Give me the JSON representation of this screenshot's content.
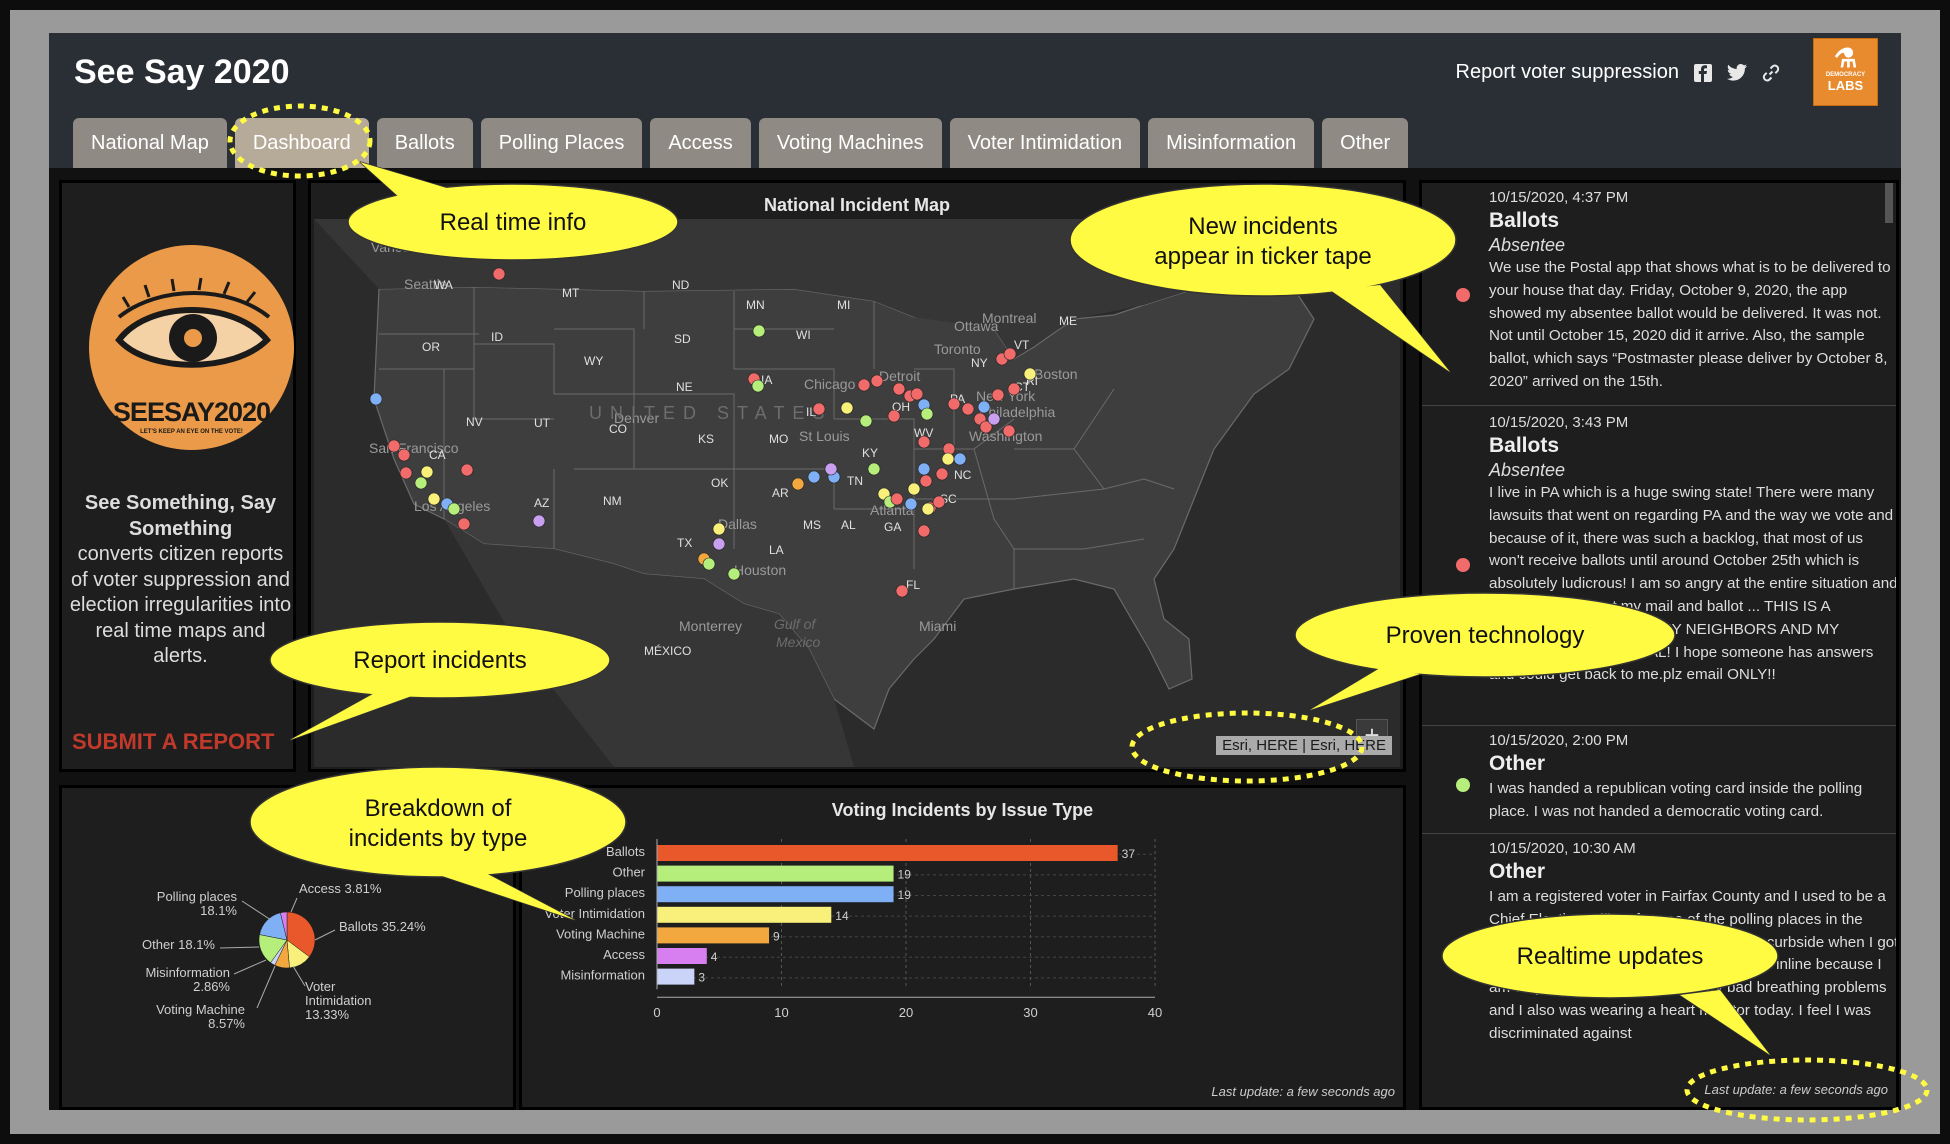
{
  "app": {
    "title": "See Say 2020"
  },
  "header": {
    "report_link": "Report voter suppression",
    "logo_text": "DEMOCRACY",
    "logo_labs": "LABS"
  },
  "tabs": [
    {
      "label": "National Map"
    },
    {
      "label": "Dashboard"
    },
    {
      "label": "Ballots"
    },
    {
      "label": "Polling Places"
    },
    {
      "label": "Access"
    },
    {
      "label": "Voting Machines"
    },
    {
      "label": "Voter Intimidation"
    },
    {
      "label": "Misinformation"
    },
    {
      "label": "Other"
    }
  ],
  "left": {
    "logo_text": "SEESAY2020",
    "logo_sub": "LET'S KEEP AN EYE ON THE VOTE!",
    "about_bold": "See Something, Say Something",
    "about_rest": "converts citizen reports of voter suppression and election irregularities into real time maps and alerts.",
    "submit_label": "SUBMIT A REPORT"
  },
  "map": {
    "title": "National Incident Map",
    "attribution": "Esri, HERE | Esri, HERE",
    "zoom_in": "+",
    "country_label": "UNITED STATES",
    "gulf_label": "Gulf of\nMexico",
    "labels": [
      {
        "t": "Vancouver"
      },
      {
        "t": "Seattle"
      },
      {
        "t": "WA"
      },
      {
        "t": "MT"
      },
      {
        "t": "ND"
      },
      {
        "t": "MN"
      },
      {
        "t": "OR"
      },
      {
        "t": "ID"
      },
      {
        "t": "WY"
      },
      {
        "t": "SD"
      },
      {
        "t": "WI"
      },
      {
        "t": "MI"
      },
      {
        "t": "Ottawa"
      },
      {
        "t": "Montreal"
      },
      {
        "t": "ME"
      },
      {
        "t": "Toronto"
      },
      {
        "t": "NY"
      },
      {
        "t": "VT"
      },
      {
        "t": "Boston"
      },
      {
        "t": "CT"
      },
      {
        "t": "RI"
      },
      {
        "t": "NV"
      },
      {
        "t": "UT"
      },
      {
        "t": "NE"
      },
      {
        "t": "IA"
      },
      {
        "t": "Chicago"
      },
      {
        "t": "Detroit"
      },
      {
        "t": "OH"
      },
      {
        "t": "PA"
      },
      {
        "t": "New York"
      },
      {
        "t": "Philadelphia"
      },
      {
        "t": "Denver"
      },
      {
        "t": "CO"
      },
      {
        "t": "KS"
      },
      {
        "t": "MO"
      },
      {
        "t": "IL"
      },
      {
        "t": "St Louis"
      },
      {
        "t": "KY"
      },
      {
        "t": "WV"
      },
      {
        "t": "Washington"
      },
      {
        "t": "San Francisco"
      },
      {
        "t": "CA"
      },
      {
        "t": "Los Angeles"
      },
      {
        "t": "AZ"
      },
      {
        "t": "NM"
      },
      {
        "t": "OK"
      },
      {
        "t": "AR"
      },
      {
        "t": "TN"
      },
      {
        "t": "Atlanta"
      },
      {
        "t": "NC"
      },
      {
        "t": "SC"
      },
      {
        "t": "MS"
      },
      {
        "t": "AL"
      },
      {
        "t": "GA"
      },
      {
        "t": "TX"
      },
      {
        "t": "Dallas"
      },
      {
        "t": "LA"
      },
      {
        "t": "Houston"
      },
      {
        "t": "FL"
      },
      {
        "t": "Monterrey"
      },
      {
        "t": "Miami"
      },
      {
        "t": "MÉXICO"
      }
    ]
  },
  "pie": {
    "labels": [
      {
        "t1": "Access 3.81%",
        "t2": ""
      },
      {
        "t1": "Ballots 35.24%",
        "t2": ""
      },
      {
        "t1": "Voter",
        "t2": "Intimidation",
        "t3": "13.33%"
      },
      {
        "t1": "Voting Machine",
        "t2": "8.57%"
      },
      {
        "t1": "Misinformation",
        "t2": "2.86%"
      },
      {
        "t1": "Other 18.1%",
        "t2": ""
      },
      {
        "t1": "Polling places",
        "t2": "18.1%"
      }
    ]
  },
  "chart_data": {
    "type": "bar",
    "title": "Voting Incidents by Issue Type",
    "categories": [
      "Ballots",
      "Other",
      "Polling places",
      "Voter Intimidation",
      "Voting Machine",
      "Access",
      "Misinformation"
    ],
    "values": [
      37,
      19,
      19,
      14,
      9,
      4,
      3
    ],
    "colors": [
      "#e8582a",
      "#b5ee7a",
      "#7fb0f5",
      "#f8f07a",
      "#f3a83f",
      "#d77ef0",
      "#c9d4f8"
    ],
    "xlim": [
      0,
      40
    ],
    "xticks": [
      "0",
      "10",
      "20",
      "30",
      "40"
    ],
    "orientation": "horizontal",
    "pie_values_pct": [
      35.24,
      18.1,
      18.1,
      13.33,
      8.57,
      3.81,
      2.86
    ]
  },
  "bar": {
    "last_update": "Last update: a few seconds ago"
  },
  "ticker": {
    "items": [
      {
        "time": "10/15/2020, 4:37 PM",
        "cat": "Ballots",
        "sub": "Absentee",
        "dot": "#f26b6b",
        "text": "We use the Postal app that shows what is to be delivered to your house that day. Friday, October 9, 2020, the app showed my absentee ballot would be delivered. It was not. Not until October 15, 2020 did it arrive. Also, the sample ballot, which says “Postmaster please deliver by October 8, 2020” arrived on the 15th."
      },
      {
        "time": "10/15/2020, 3:43 PM",
        "cat": "Ballots",
        "sub": "Absentee",
        "dot": "#f26b6b",
        "text": "I live in PA which is a huge swing state! There were many lawsuits that went on regarding PA and the way we vote and because of it, there was such a backlog, that most of us won't receive ballots until around October 25th which is absolutely ludicrous! I am so angry at the entire situation and it isn't funny. I want my mail and ballot ... THIS IS A PROBLEM FOR ALL OF MY NEIGHBORS AND MY TOWNSHIP IN GENERAL! I hope someone has answers and could get back to me.plz email ONLY!!"
      },
      {
        "time": "10/15/2020, 2:00 PM",
        "cat": "Other",
        "sub": "",
        "dot": "#b5ee7a",
        "text": "I was handed a republican voting card inside the polling place. I was not handed a democratic voting card."
      },
      {
        "time": "10/15/2020, 10:30 AM",
        "cat": "Other",
        "sub": "",
        "dot": "#b5ee7a",
        "text": "I am a registered voter in Fairfax County and I used to be a Chief Election Officer for one of the polling places in the County ... absentee sites. When I ... vote curbside when I got to the polling place I was not able to stand inline because I am 72 year old asthmatic with very bad breathing problems and I also was wearing a heart monitor today. I feel I was discriminated against"
      }
    ],
    "last_update": "Last update: a few seconds ago"
  },
  "callouts": {
    "realtime": "Real time info",
    "new_incidents_1": "New incidents",
    "new_incidents_2": "appear in ticker tape",
    "report": "Report incidents",
    "proven": "Proven technology",
    "breakdown_1": "Breakdown of",
    "breakdown_2": "incidents by type",
    "realtime_updates": "Realtime updates"
  }
}
